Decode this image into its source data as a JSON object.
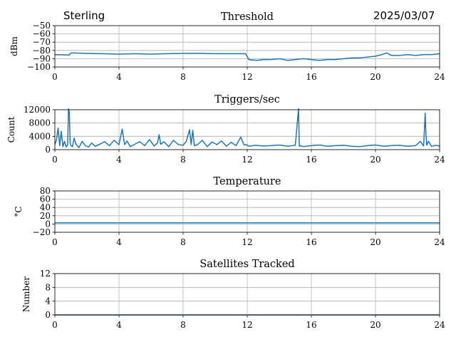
{
  "header": {
    "left": "Sterling",
    "right": "2025/03/07"
  },
  "colors": {
    "line": "#1f77b4",
    "grid": "#b0b0b0",
    "axes": "#000000"
  },
  "chart_data": [
    {
      "type": "line",
      "title": "Threshold",
      "ylabel": "dBm",
      "xlabel": "",
      "xlim": [
        0,
        24
      ],
      "ylim": [
        -100,
        -50
      ],
      "x_ticks": [
        "0",
        "4",
        "8",
        "12",
        "16",
        "20",
        "24"
      ],
      "y_ticks": [
        "−50",
        "−60",
        "−70",
        "−80",
        "−90",
        "−100"
      ],
      "grid": true,
      "series": [
        {
          "x": [
            0,
            0.9,
            1.0,
            2,
            3,
            4,
            5,
            6,
            7,
            8,
            9,
            10,
            11,
            11.9,
            12.1,
            12.6,
            13,
            13.5,
            14,
            14.5,
            15,
            15.5,
            16,
            16.5,
            17,
            17.5,
            18,
            18.5,
            19,
            19.5,
            20,
            20.4,
            20.7,
            21,
            21.5,
            22,
            22.5,
            23,
            23.5,
            24
          ],
          "y": [
            -85,
            -85.5,
            -83,
            -83.5,
            -84,
            -84.5,
            -84,
            -84.5,
            -84,
            -83.5,
            -83.5,
            -84,
            -84,
            -84,
            -91,
            -92,
            -91,
            -91,
            -90,
            -92,
            -91,
            -90,
            -91,
            -92,
            -91,
            -91,
            -90,
            -89,
            -89,
            -88,
            -87,
            -85,
            -83,
            -86,
            -86,
            -85,
            -86,
            -85,
            -85,
            -84
          ]
        }
      ]
    },
    {
      "type": "line",
      "title": "Triggers/sec",
      "ylabel": "Count",
      "xlabel": "",
      "xlim": [
        0,
        24
      ],
      "ylim": [
        0,
        12000
      ],
      "x_ticks": [
        "0",
        "4",
        "8",
        "12",
        "16",
        "20",
        "24"
      ],
      "y_ticks": [
        "12000",
        "8000",
        "4000",
        "0"
      ],
      "grid": true,
      "series": [
        {
          "x": [
            0,
            0.1,
            0.2,
            0.3,
            0.4,
            0.5,
            0.6,
            0.7,
            0.8,
            0.85,
            0.9,
            0.95,
            1.0,
            1.1,
            1.2,
            1.3,
            1.5,
            1.7,
            1.9,
            2.1,
            2.3,
            2.5,
            2.8,
            3.1,
            3.4,
            3.7,
            4.0,
            4.2,
            4.35,
            4.5,
            4.7,
            5.0,
            5.3,
            5.6,
            5.9,
            6.2,
            6.4,
            6.5,
            6.6,
            6.8,
            7.1,
            7.4,
            7.7,
            8.0,
            8.2,
            8.4,
            8.5,
            8.6,
            8.7,
            8.9,
            9.2,
            9.5,
            9.8,
            10.1,
            10.4,
            10.7,
            11.0,
            11.3,
            11.6,
            11.8,
            11.95,
            12.1,
            12.5,
            13,
            13.5,
            14,
            14.5,
            15.0,
            15.2,
            15.25,
            15.3,
            15.5,
            16,
            16.5,
            17,
            17.5,
            18,
            18.5,
            19,
            19.5,
            20,
            20.5,
            21,
            21.5,
            22,
            22.5,
            22.8,
            23.0,
            23.1,
            23.15,
            23.2,
            23.3,
            23.5,
            23.8,
            24
          ],
          "y": [
            1500,
            3000,
            6500,
            1200,
            5500,
            900,
            2500,
            800,
            1500,
            12300,
            11500,
            2000,
            1200,
            900,
            3500,
            1800,
            600,
            2500,
            1200,
            800,
            2000,
            1000,
            1600,
            2400,
            1200,
            2800,
            1500,
            6200,
            1500,
            2600,
            900,
            1700,
            2400,
            1200,
            3000,
            1100,
            2000,
            4500,
            1600,
            2400,
            900,
            2800,
            1500,
            1300,
            2500,
            6000,
            1500,
            5800,
            1200,
            1500,
            2800,
            900,
            2300,
            1500,
            2600,
            1000,
            2200,
            1200,
            3800,
            1400,
            1500,
            1000,
            1300,
            1100,
            1200,
            1400,
            1000,
            1300,
            12300,
            1000,
            1200,
            900,
            1200,
            1400,
            1000,
            1200,
            1300,
            1000,
            900,
            1200,
            1400,
            1000,
            1200,
            1300,
            1000,
            1200,
            2500,
            1100,
            11000,
            4000,
            1300,
            2500,
            1000,
            1300,
            1000
          ]
        }
      ]
    },
    {
      "type": "line",
      "title": "Temperature",
      "ylabel": "°C",
      "xlabel": "",
      "xlim": [
        0,
        24
      ],
      "ylim": [
        -20,
        80
      ],
      "x_ticks": [
        "0",
        "4",
        "8",
        "12",
        "16",
        "20",
        "24"
      ],
      "y_ticks": [
        "80",
        "60",
        "40",
        "20",
        "0",
        "−20"
      ],
      "grid": true,
      "series": [
        {
          "x": [
            0,
            24
          ],
          "y": [
            3,
            3
          ]
        }
      ]
    },
    {
      "type": "line",
      "title": "Satellites Tracked",
      "ylabel": "Number",
      "xlabel": "",
      "xlim": [
        0,
        24
      ],
      "ylim": [
        0,
        12
      ],
      "x_ticks": [
        "0",
        "4",
        "8",
        "12",
        "16",
        "20",
        "24"
      ],
      "y_ticks": [
        "12",
        "8",
        "4",
        "0"
      ],
      "grid": true,
      "series": [
        {
          "x": [
            0,
            24
          ],
          "y": [
            0,
            0
          ]
        }
      ]
    }
  ]
}
